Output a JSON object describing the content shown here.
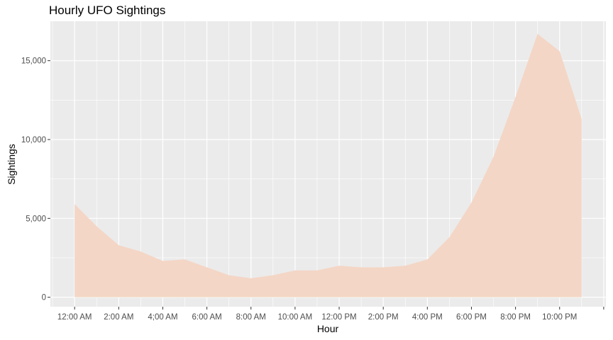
{
  "chart_data": {
    "type": "area",
    "title": "Hourly UFO Sightings",
    "xlabel": "Hour",
    "ylabel": "Sightings",
    "x": [
      0,
      1,
      2,
      3,
      4,
      5,
      6,
      7,
      8,
      9,
      10,
      11,
      12,
      13,
      14,
      15,
      16,
      17,
      18,
      19,
      20,
      21,
      22,
      23
    ],
    "y": [
      5900,
      4500,
      3300,
      2900,
      2300,
      2400,
      1900,
      1400,
      1200,
      1400,
      1700,
      1700,
      2000,
      1900,
      1900,
      2000,
      2400,
      3800,
      6000,
      8900,
      12700,
      16700,
      15600,
      11300
    ],
    "x_tick_labels": [
      "12:00 AM",
      "2:00 AM",
      "4;00 AM",
      "6:00 AM",
      "8:00 AM",
      "10:00 AM",
      "12:00 PM",
      "2:00 PM",
      "4:00 PM",
      "6:00 PM",
      "8:00 PM",
      "10:00 PM"
    ],
    "x_tick_positions": [
      0,
      2,
      4,
      6,
      8,
      10,
      12,
      14,
      16,
      18,
      20,
      22
    ],
    "y_ticks": [
      0,
      5000,
      10000,
      15000
    ],
    "y_tick_labels": [
      "0",
      "5,000",
      "10,000",
      "15,000"
    ],
    "xlim": [
      -1.1,
      24.1
    ],
    "ylim": [
      -600,
      17500
    ],
    "fill_color": "#f4d6c6",
    "panel_color": "#ebebeb",
    "grid_color": "#ffffff",
    "grid": true,
    "legend": "none"
  }
}
